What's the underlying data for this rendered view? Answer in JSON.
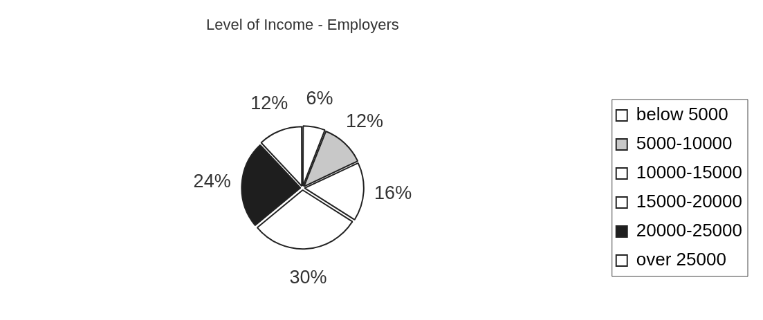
{
  "chart_data": {
    "type": "pie",
    "title": "Level of Income - Employers",
    "categories": [
      "below 5000",
      "5000-10000",
      "10000-15000",
      "15000-20000",
      "20000-25000",
      "over 25000"
    ],
    "values": [
      6,
      12,
      16,
      30,
      24,
      12
    ],
    "colors": [
      "#ffffff",
      "#c8c8c8",
      "#ffffff",
      "#ffffff",
      "#1e1e1e",
      "#ffffff"
    ],
    "value_labels": [
      "6%",
      "12%",
      "16%",
      "30%",
      "24%",
      "12%"
    ],
    "legend": "right"
  }
}
